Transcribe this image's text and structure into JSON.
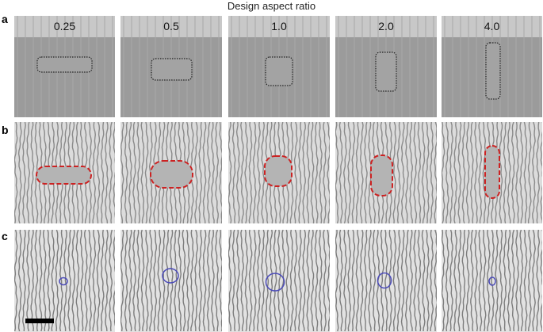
{
  "figure": {
    "title": "Design aspect ratio",
    "row_labels": [
      "a",
      "b",
      "c"
    ],
    "aspect_ratios": [
      "0.25",
      "0.5",
      "1.0",
      "2.0",
      "4.0"
    ],
    "colors": {
      "design_background": "#9b9b9b",
      "header_strip": "#c8c8c8",
      "design_outline": "#222222",
      "simulated_outline": "#cc2222",
      "experimental_outline": "#4a4ab8",
      "scale_bar": "#000000"
    }
  }
}
